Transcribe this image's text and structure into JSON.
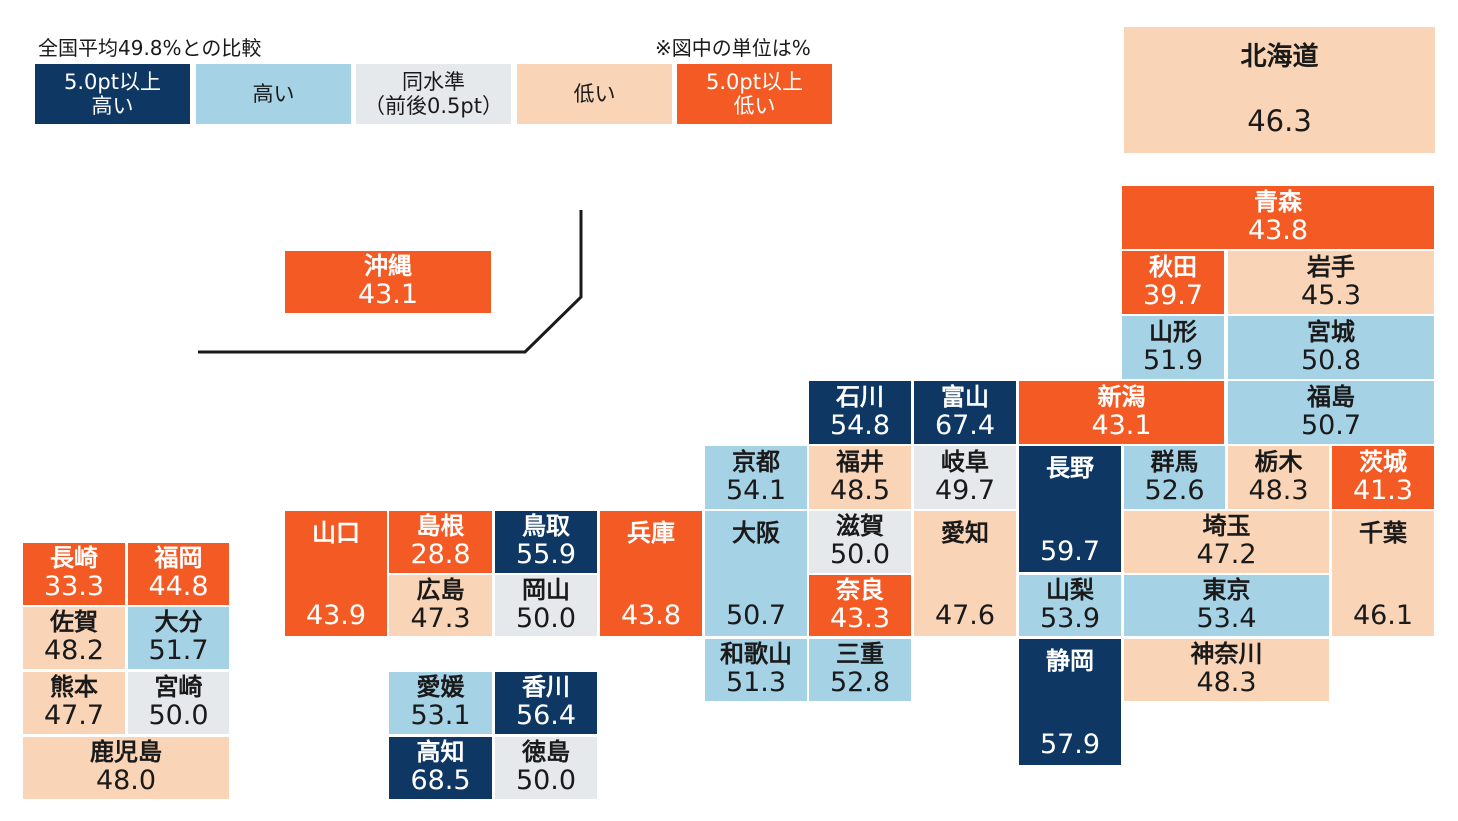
{
  "legend": {
    "title": "全国平均49.8%との比較",
    "unit_note": "※図中の単位は%",
    "categories": [
      {
        "key": "dh",
        "label": "5.0pt以上\n高い",
        "color": "#0e3764"
      },
      {
        "key": "h",
        "label": "高い",
        "color": "#a6d2e6"
      },
      {
        "key": "s",
        "label": "同水準\n（前後0.5pt）",
        "color": "#e6e9ec"
      },
      {
        "key": "l",
        "label": "低い",
        "color": "#f9d4b6"
      },
      {
        "key": "dl",
        "label": "5.0pt以上\n低い",
        "color": "#f45a24"
      }
    ]
  },
  "national_average": 49.8,
  "prefectures": {
    "hokkaido": {
      "name": "北海道",
      "value": "46.3",
      "category": "l"
    },
    "aomori": {
      "name": "青森",
      "value": "43.8",
      "category": "dl"
    },
    "akita": {
      "name": "秋田",
      "value": "39.7",
      "category": "dl"
    },
    "iwate": {
      "name": "岩手",
      "value": "45.3",
      "category": "l"
    },
    "yamagata": {
      "name": "山形",
      "value": "51.9",
      "category": "h"
    },
    "miyagi": {
      "name": "宮城",
      "value": "50.8",
      "category": "h"
    },
    "ishikawa": {
      "name": "石川",
      "value": "54.8",
      "category": "dh"
    },
    "toyama": {
      "name": "富山",
      "value": "67.4",
      "category": "dh"
    },
    "niigata": {
      "name": "新潟",
      "value": "43.1",
      "category": "dl"
    },
    "fukushima": {
      "name": "福島",
      "value": "50.7",
      "category": "h"
    },
    "kyoto": {
      "name": "京都",
      "value": "54.1",
      "category": "h"
    },
    "fukui": {
      "name": "福井",
      "value": "48.5",
      "category": "l"
    },
    "gifu": {
      "name": "岐阜",
      "value": "49.7",
      "category": "s"
    },
    "nagano": {
      "name": "長野",
      "value": "59.7",
      "category": "dh"
    },
    "gunma": {
      "name": "群馬",
      "value": "52.6",
      "category": "h"
    },
    "tochigi": {
      "name": "栃木",
      "value": "48.3",
      "category": "l"
    },
    "ibaraki": {
      "name": "茨城",
      "value": "41.3",
      "category": "dl"
    },
    "yamaguchi": {
      "name": "山口",
      "value": "43.9",
      "category": "dl"
    },
    "shimane": {
      "name": "島根",
      "value": "28.8",
      "category": "dl"
    },
    "tottori": {
      "name": "鳥取",
      "value": "55.9",
      "category": "dh"
    },
    "hyogo": {
      "name": "兵庫",
      "value": "43.8",
      "category": "dl"
    },
    "osaka": {
      "name": "大阪",
      "value": "50.7",
      "category": "h"
    },
    "shiga": {
      "name": "滋賀",
      "value": "50.0",
      "category": "s"
    },
    "aichi": {
      "name": "愛知",
      "value": "47.6",
      "category": "l"
    },
    "saitama": {
      "name": "埼玉",
      "value": "47.2",
      "category": "l"
    },
    "chiba": {
      "name": "千葉",
      "value": "46.1",
      "category": "l"
    },
    "hiroshima": {
      "name": "広島",
      "value": "47.3",
      "category": "l"
    },
    "okayama": {
      "name": "岡山",
      "value": "50.0",
      "category": "s"
    },
    "nara": {
      "name": "奈良",
      "value": "43.3",
      "category": "dl"
    },
    "yamanashi": {
      "name": "山梨",
      "value": "53.9",
      "category": "h"
    },
    "tokyo": {
      "name": "東京",
      "value": "53.4",
      "category": "h"
    },
    "wakayama": {
      "name": "和歌山",
      "value": "51.3",
      "category": "h"
    },
    "mie": {
      "name": "三重",
      "value": "52.8",
      "category": "h"
    },
    "shizuoka": {
      "name": "静岡",
      "value": "57.9",
      "category": "dh"
    },
    "kanagawa": {
      "name": "神奈川",
      "value": "48.3",
      "category": "l"
    },
    "okinawa": {
      "name": "沖縄",
      "value": "43.1",
      "category": "dl"
    },
    "nagasaki": {
      "name": "長崎",
      "value": "33.3",
      "category": "dl"
    },
    "fukuoka": {
      "name": "福岡",
      "value": "44.8",
      "category": "dl"
    },
    "saga": {
      "name": "佐賀",
      "value": "48.2",
      "category": "l"
    },
    "oita": {
      "name": "大分",
      "value": "51.7",
      "category": "h"
    },
    "kumamoto": {
      "name": "熊本",
      "value": "47.7",
      "category": "l"
    },
    "miyazaki": {
      "name": "宮崎",
      "value": "50.0",
      "category": "s"
    },
    "kagoshima": {
      "name": "鹿児島",
      "value": "48.0",
      "category": "l"
    },
    "ehime": {
      "name": "愛媛",
      "value": "53.1",
      "category": "h"
    },
    "kagawa": {
      "name": "香川",
      "value": "56.4",
      "category": "dh"
    },
    "kochi": {
      "name": "高知",
      "value": "68.5",
      "category": "dh"
    },
    "tokushima": {
      "name": "徳島",
      "value": "50.0",
      "category": "s"
    }
  }
}
